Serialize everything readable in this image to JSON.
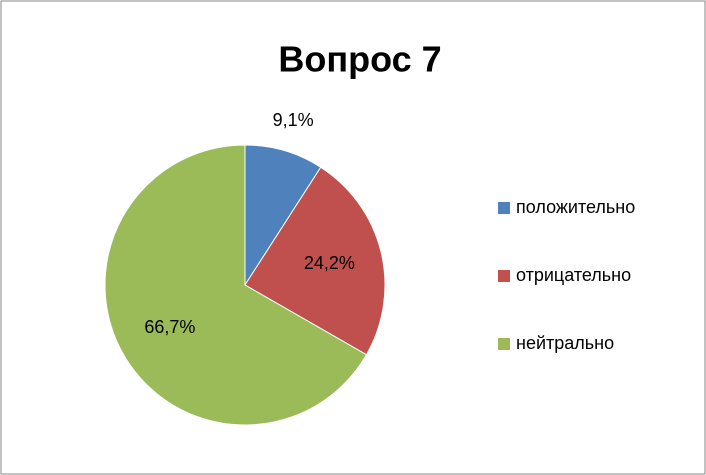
{
  "chart_data": {
    "type": "pie",
    "title": "Вопрос 7",
    "categories": [
      "положительно",
      "отрицательно",
      "нейтрально"
    ],
    "values": [
      9.1,
      24.2,
      66.7
    ],
    "value_labels": [
      "9,1%",
      "24,2%",
      "66,7%"
    ],
    "colors": [
      "#4f81bd",
      "#c0504d",
      "#9bbb59"
    ],
    "legend": "right"
  }
}
